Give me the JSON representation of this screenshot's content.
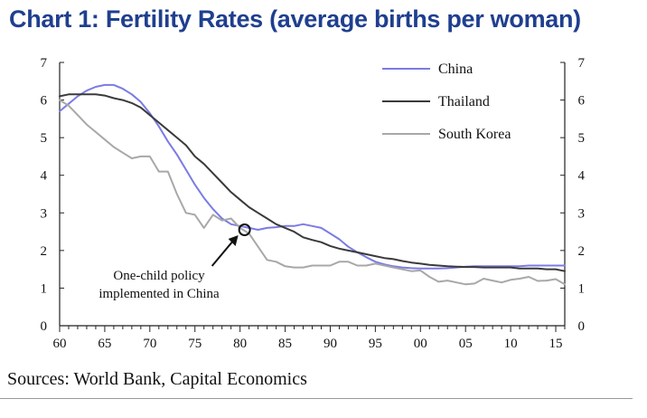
{
  "chart_data": {
    "type": "line",
    "title": "Chart 1: Fertility Rates (average births per woman)",
    "xlabel": "",
    "ylabel": "",
    "xlim": [
      1960,
      2016
    ],
    "ylim": [
      0,
      7
    ],
    "x_tick_values": [
      1960,
      1965,
      1970,
      1975,
      1980,
      1985,
      1990,
      1995,
      2000,
      2005,
      2010,
      2015
    ],
    "x_tick_labels": [
      "60",
      "65",
      "70",
      "75",
      "80",
      "85",
      "90",
      "95",
      "00",
      "05",
      "10",
      "15"
    ],
    "y_ticks": [
      0,
      1,
      2,
      3,
      4,
      5,
      6,
      7
    ],
    "legend_position": "top-right",
    "series": [
      {
        "name": "China",
        "color": "#7b7be6",
        "x": [
          1960,
          1961,
          1962,
          1963,
          1964,
          1965,
          1966,
          1967,
          1968,
          1969,
          1970,
          1971,
          1972,
          1973,
          1974,
          1975,
          1976,
          1977,
          1978,
          1979,
          1980,
          1981,
          1982,
          1983,
          1984,
          1985,
          1986,
          1987,
          1988,
          1989,
          1990,
          1991,
          1992,
          1993,
          1994,
          1995,
          1996,
          1997,
          1998,
          1999,
          2000,
          2001,
          2002,
          2003,
          2004,
          2005,
          2006,
          2007,
          2008,
          2009,
          2010,
          2011,
          2012,
          2013,
          2014,
          2015,
          2016
        ],
        "values": [
          5.7,
          5.9,
          6.1,
          6.25,
          6.35,
          6.4,
          6.4,
          6.3,
          6.15,
          5.95,
          5.65,
          5.3,
          4.9,
          4.55,
          4.15,
          3.75,
          3.4,
          3.1,
          2.85,
          2.7,
          2.65,
          2.6,
          2.55,
          2.6,
          2.62,
          2.65,
          2.65,
          2.7,
          2.65,
          2.6,
          2.45,
          2.3,
          2.1,
          1.95,
          1.82,
          1.7,
          1.63,
          1.58,
          1.55,
          1.53,
          1.52,
          1.52,
          1.52,
          1.53,
          1.55,
          1.57,
          1.58,
          1.58,
          1.58,
          1.58,
          1.58,
          1.58,
          1.6,
          1.6,
          1.6,
          1.6,
          1.6
        ]
      },
      {
        "name": "Thailand",
        "color": "#3a3a3a",
        "x": [
          1960,
          1961,
          1962,
          1963,
          1964,
          1965,
          1966,
          1967,
          1968,
          1969,
          1970,
          1971,
          1972,
          1973,
          1974,
          1975,
          1976,
          1977,
          1978,
          1979,
          1980,
          1981,
          1982,
          1983,
          1984,
          1985,
          1986,
          1987,
          1988,
          1989,
          1990,
          1991,
          1992,
          1993,
          1994,
          1995,
          1996,
          1997,
          1998,
          1999,
          2000,
          2001,
          2002,
          2003,
          2004,
          2005,
          2006,
          2007,
          2008,
          2009,
          2010,
          2011,
          2012,
          2013,
          2014,
          2015,
          2016
        ],
        "values": [
          6.1,
          6.15,
          6.15,
          6.15,
          6.15,
          6.12,
          6.05,
          6.0,
          5.92,
          5.8,
          5.6,
          5.4,
          5.2,
          5.0,
          4.8,
          4.5,
          4.3,
          4.05,
          3.8,
          3.55,
          3.35,
          3.15,
          3.0,
          2.85,
          2.7,
          2.6,
          2.5,
          2.35,
          2.28,
          2.22,
          2.12,
          2.05,
          2.0,
          1.95,
          1.9,
          1.85,
          1.8,
          1.77,
          1.72,
          1.68,
          1.65,
          1.62,
          1.6,
          1.58,
          1.57,
          1.56,
          1.56,
          1.55,
          1.55,
          1.55,
          1.55,
          1.52,
          1.52,
          1.52,
          1.5,
          1.5,
          1.45
        ]
      },
      {
        "name": "South Korea",
        "color": "#a8a8a8",
        "x": [
          1960,
          1961,
          1962,
          1963,
          1964,
          1965,
          1966,
          1967,
          1968,
          1969,
          1970,
          1971,
          1972,
          1973,
          1974,
          1975,
          1976,
          1977,
          1978,
          1979,
          1980,
          1981,
          1982,
          1983,
          1984,
          1985,
          1986,
          1987,
          1988,
          1989,
          1990,
          1991,
          1992,
          1993,
          1994,
          1995,
          1996,
          1997,
          1998,
          1999,
          2000,
          2001,
          2002,
          2003,
          2004,
          2005,
          2006,
          2007,
          2008,
          2009,
          2010,
          2011,
          2012,
          2013,
          2014,
          2015,
          2016
        ],
        "values": [
          6.0,
          5.85,
          5.6,
          5.35,
          5.15,
          4.95,
          4.75,
          4.6,
          4.45,
          4.5,
          4.5,
          4.1,
          4.1,
          3.5,
          3.0,
          2.95,
          2.6,
          2.95,
          2.8,
          2.85,
          2.6,
          2.45,
          2.1,
          1.75,
          1.7,
          1.58,
          1.55,
          1.55,
          1.6,
          1.6,
          1.6,
          1.7,
          1.7,
          1.6,
          1.6,
          1.65,
          1.6,
          1.55,
          1.5,
          1.45,
          1.47,
          1.3,
          1.17,
          1.2,
          1.15,
          1.1,
          1.12,
          1.25,
          1.2,
          1.15,
          1.22,
          1.25,
          1.3,
          1.19,
          1.2,
          1.24,
          1.1
        ]
      }
    ],
    "annotations": [
      {
        "lines": [
          "One-child policy",
          "implemented in China"
        ],
        "x": 1980.5,
        "y": 2.55
      }
    ]
  },
  "footer": {
    "source": "Sources: World Bank, Capital Economics"
  }
}
